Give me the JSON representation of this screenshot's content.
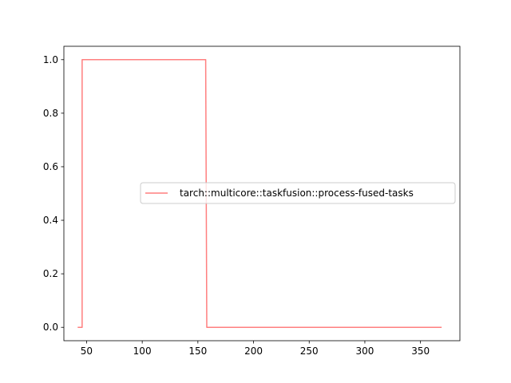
{
  "chart_data": {
    "type": "line",
    "title": "",
    "xlabel": "",
    "ylabel": "",
    "xlim": [
      29.6,
      385.4
    ],
    "ylim": [
      -0.05,
      1.05
    ],
    "x_ticks": [
      50,
      100,
      150,
      200,
      250,
      300,
      350
    ],
    "y_ticks": [
      0.0,
      0.2,
      0.4,
      0.6,
      0.8,
      1.0
    ],
    "x_tick_labels": [
      "50",
      "100",
      "150",
      "200",
      "250",
      "300",
      "350"
    ],
    "y_tick_labels": [
      "0.0",
      "0.2",
      "0.4",
      "0.6",
      "0.8",
      "1.0"
    ],
    "grid": false,
    "legend_position": "center-right",
    "series": [
      {
        "name": "tarch::multicore::taskfusion::process-fused-tasks",
        "color": "#ff7f7f",
        "x": [
          42,
          46,
          46,
          157,
          158,
          369
        ],
        "y": [
          0,
          0,
          1,
          1,
          0,
          0
        ]
      }
    ]
  }
}
